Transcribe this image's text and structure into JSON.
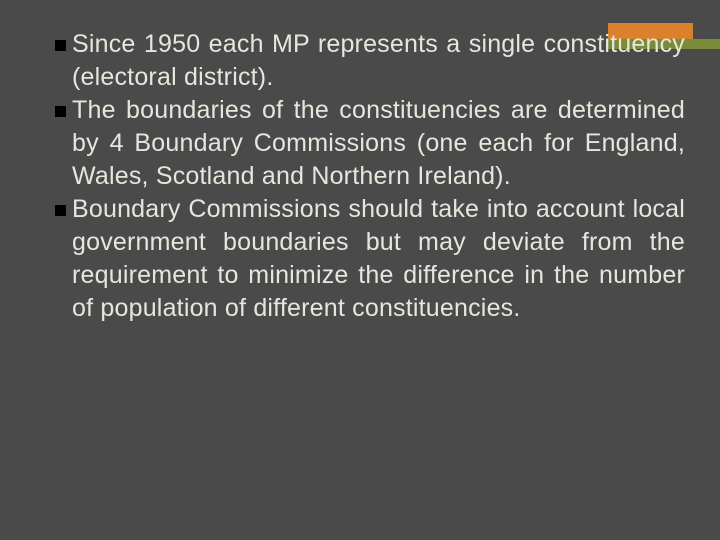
{
  "slide": {
    "background_color": "#4a4a4a",
    "text_color": "#e8e5dc",
    "bullet_color": "#000000",
    "accent_colors": {
      "orange": "#d9822b",
      "green": "#7a8c3a"
    },
    "font_size": 25,
    "bullets": [
      {
        "text": "Since 1950 each MP represents a single constituency (electoral district)."
      },
      {
        "text": "The boundaries of the constituencies are determined by 4 Boundary Commissions (one each for England, Wales, Scotland and Northern Ireland)."
      },
      {
        "text": "Boundary Commissions should take into account local government boundaries but may deviate from the requirement to minimize the difference in the number of population of different constituencies."
      }
    ]
  }
}
